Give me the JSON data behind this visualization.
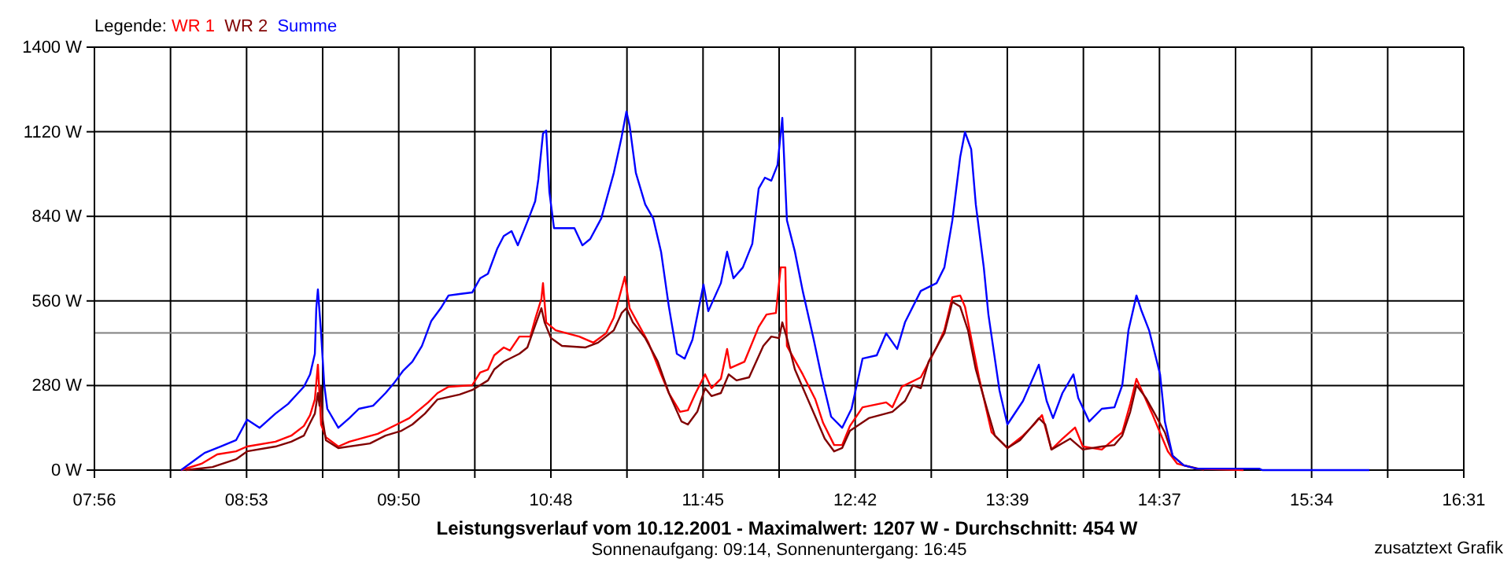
{
  "chart_data": {
    "type": "line",
    "title": "Leistungsverlauf vom 10.12.2001 - Maximalwert: 1207 W - Durchschnitt: 454 W",
    "subtitle": "Sonnenaufgang: 09:14, Sonnenuntergang: 16:45",
    "legend_title": "Legende:",
    "legend": "top left",
    "grid": true,
    "marker": "none",
    "line_style": "solid",
    "annotations": [
      "zusatztext Grafik"
    ],
    "xlim": [
      7.9333,
      16.5167
    ],
    "xticks": [
      {
        "value": 7.9333,
        "label": "07:56"
      },
      {
        "value": 8.4102,
        "label": null
      },
      {
        "value": 8.887,
        "label": "08:53"
      },
      {
        "value": 9.3639,
        "label": null
      },
      {
        "value": 9.8407,
        "label": "09:50"
      },
      {
        "value": 10.3176,
        "label": null
      },
      {
        "value": 10.7944,
        "label": "10:48"
      },
      {
        "value": 11.2713,
        "label": null
      },
      {
        "value": 11.7481,
        "label": "11:45"
      },
      {
        "value": 12.225,
        "label": null
      },
      {
        "value": 12.7018,
        "label": "12:42"
      },
      {
        "value": 13.1787,
        "label": null
      },
      {
        "value": 13.6555,
        "label": "13:39"
      },
      {
        "value": 14.1324,
        "label": null
      },
      {
        "value": 14.6092,
        "label": "14:37"
      },
      {
        "value": 15.0861,
        "label": null
      },
      {
        "value": 15.5629,
        "label": "15:34"
      },
      {
        "value": 16.0398,
        "label": null
      },
      {
        "value": 16.5167,
        "label": "16:31"
      }
    ],
    "ylim": [
      0,
      1400
    ],
    "yticks": [
      {
        "value": 0,
        "label": "0 W"
      },
      {
        "value": 280,
        "label": "280 W"
      },
      {
        "value": 560,
        "label": "560 W"
      },
      {
        "value": 840,
        "label": "840 W"
      },
      {
        "value": 1120,
        "label": "1120 W"
      },
      {
        "value": 1400,
        "label": "1400 W"
      }
    ],
    "ref_lines": [
      {
        "axis": "y",
        "value": 454,
        "color": "#808080"
      }
    ],
    "series": [
      {
        "name": "WR 1",
        "color": "#ff0000",
        "x": [
          8.476,
          8.604,
          8.703,
          8.821,
          8.89,
          9.068,
          9.167,
          9.246,
          9.285,
          9.315,
          9.334,
          9.354,
          9.384,
          9.462,
          9.531,
          9.709,
          9.828,
          9.907,
          10.025,
          10.084,
          10.153,
          10.301,
          10.351,
          10.4,
          10.439,
          10.499,
          10.538,
          10.597,
          10.666,
          10.696,
          10.735,
          10.745,
          10.765,
          10.824,
          10.972,
          11.061,
          11.14,
          11.189,
          11.258,
          11.288,
          11.337,
          11.406,
          11.485,
          11.534,
          11.604,
          11.653,
          11.702,
          11.761,
          11.801,
          11.86,
          11.899,
          11.919,
          12.008,
          12.097,
          12.146,
          12.205,
          12.235,
          12.264,
          12.274,
          12.373,
          12.452,
          12.501,
          12.57,
          12.62,
          12.669,
          12.748,
          12.896,
          12.935,
          12.994,
          13.113,
          13.212,
          13.261,
          13.311,
          13.36,
          13.39,
          13.429,
          13.478,
          13.557,
          13.656,
          13.754,
          13.823,
          13.873,
          13.932,
          14.001,
          14.08,
          14.129,
          14.248,
          14.327,
          14.376,
          14.426,
          14.465,
          14.514,
          14.563,
          14.662,
          14.721,
          14.84,
          15.136
        ],
        "values": [
          0,
          21,
          52,
          62,
          78,
          94,
          114,
          146,
          182,
          234,
          349,
          151,
          109,
          78,
          94,
          120,
          151,
          172,
          224,
          255,
          276,
          281,
          323,
          333,
          380,
          406,
          396,
          442,
          442,
          500,
          567,
          619,
          489,
          463,
          442,
          422,
          453,
          505,
          640,
          536,
          489,
          422,
          317,
          255,
          193,
          198,
          255,
          317,
          271,
          302,
          401,
          338,
          359,
          474,
          515,
          520,
          671,
          671,
          411,
          317,
          234,
          156,
          83,
          83,
          146,
          208,
          224,
          208,
          276,
          307,
          406,
          463,
          572,
          578,
          541,
          437,
          307,
          125,
          73,
          114,
          151,
          182,
          68,
          104,
          141,
          78,
          68,
          104,
          125,
          219,
          302,
          245,
          187,
          62,
          21,
          5,
          0
        ]
      },
      {
        "name": "WR 2",
        "color": "#800000",
        "x": [
          8.505,
          8.673,
          8.821,
          8.89,
          9.068,
          9.167,
          9.246,
          9.285,
          9.315,
          9.334,
          9.344,
          9.354,
          9.364,
          9.384,
          9.462,
          9.66,
          9.758,
          9.857,
          9.926,
          10.005,
          10.084,
          10.222,
          10.301,
          10.4,
          10.439,
          10.499,
          10.597,
          10.647,
          10.696,
          10.735,
          10.755,
          10.795,
          10.864,
          11.012,
          11.09,
          11.189,
          11.238,
          11.268,
          11.308,
          11.386,
          11.465,
          11.534,
          11.613,
          11.653,
          11.712,
          11.761,
          11.801,
          11.86,
          11.909,
          11.958,
          12.037,
          12.126,
          12.176,
          12.225,
          12.245,
          12.274,
          12.324,
          12.452,
          12.511,
          12.57,
          12.62,
          12.669,
          12.787,
          12.935,
          13.014,
          13.064,
          13.113,
          13.162,
          13.261,
          13.311,
          13.36,
          13.409,
          13.458,
          13.528,
          13.577,
          13.656,
          13.735,
          13.804,
          13.853,
          13.893,
          13.932,
          14.05,
          14.129,
          14.248,
          14.327,
          14.376,
          14.426,
          14.465,
          14.524,
          14.573,
          14.643,
          14.692,
          14.761,
          14.889
        ],
        "values": [
          0,
          10,
          36,
          62,
          78,
          94,
          114,
          156,
          187,
          255,
          213,
          276,
          167,
          99,
          73,
          88,
          114,
          130,
          151,
          187,
          234,
          250,
          265,
          297,
          333,
          359,
          385,
          406,
          479,
          536,
          489,
          437,
          411,
          406,
          422,
          463,
          520,
          536,
          489,
          437,
          359,
          255,
          161,
          151,
          193,
          271,
          245,
          255,
          317,
          297,
          307,
          411,
          442,
          437,
          489,
          437,
          333,
          177,
          104,
          62,
          73,
          130,
          172,
          193,
          229,
          281,
          271,
          359,
          453,
          557,
          541,
          463,
          333,
          203,
          114,
          73,
          99,
          141,
          172,
          151,
          68,
          104,
          68,
          78,
          83,
          114,
          193,
          281,
          239,
          193,
          125,
          47,
          16,
          0
        ]
      },
      {
        "name": "Summe",
        "color": "#0000ff",
        "x": [
          8.476,
          8.624,
          8.723,
          8.821,
          8.89,
          8.969,
          9.068,
          9.147,
          9.246,
          9.285,
          9.315,
          9.324,
          9.334,
          9.354,
          9.374,
          9.393,
          9.462,
          9.531,
          9.591,
          9.68,
          9.758,
          9.808,
          9.867,
          9.926,
          9.986,
          10.045,
          10.104,
          10.153,
          10.222,
          10.301,
          10.351,
          10.4,
          10.459,
          10.499,
          10.548,
          10.587,
          10.627,
          10.666,
          10.696,
          10.716,
          10.745,
          10.765,
          10.785,
          10.814,
          10.942,
          10.992,
          11.041,
          11.11,
          11.189,
          11.238,
          11.268,
          11.288,
          11.327,
          11.386,
          11.436,
          11.485,
          11.534,
          11.584,
          11.633,
          11.682,
          11.751,
          11.781,
          11.86,
          11.899,
          11.939,
          11.998,
          12.057,
          12.097,
          12.136,
          12.176,
          12.215,
          12.245,
          12.274,
          12.324,
          12.373,
          12.442,
          12.492,
          12.551,
          12.62,
          12.679,
          12.748,
          12.837,
          12.896,
          12.965,
          13.014,
          13.113,
          13.212,
          13.261,
          13.311,
          13.36,
          13.39,
          13.429,
          13.458,
          13.508,
          13.537,
          13.606,
          13.656,
          13.754,
          13.853,
          13.902,
          13.942,
          14.001,
          14.07,
          14.1,
          14.169,
          14.248,
          14.327,
          14.376,
          14.415,
          14.465,
          14.494,
          14.544,
          14.613,
          14.643,
          14.692,
          14.761,
          14.84,
          15.234,
          15.254,
          15.925
        ],
        "values": [
          0,
          57,
          78,
          99,
          167,
          140,
          187,
          219,
          276,
          317,
          385,
          536,
          598,
          453,
          281,
          203,
          140,
          172,
          203,
          213,
          255,
          286,
          328,
          359,
          411,
          494,
          536,
          578,
          583,
          588,
          635,
          650,
          734,
          775,
          791,
          744,
          796,
          848,
          890,
          963,
          1114,
          1124,
          921,
          801,
          801,
          744,
          765,
          833,
          984,
          1103,
          1187,
          1140,
          984,
          879,
          833,
          723,
          541,
          385,
          369,
          432,
          614,
          526,
          619,
          723,
          635,
          671,
          749,
          932,
          968,
          958,
          1010,
          1166,
          827,
          723,
          593,
          432,
          307,
          177,
          140,
          203,
          369,
          380,
          453,
          401,
          489,
          593,
          619,
          671,
          827,
          1036,
          1119,
          1062,
          879,
          671,
          515,
          265,
          151,
          229,
          349,
          229,
          172,
          255,
          317,
          239,
          161,
          203,
          208,
          281,
          463,
          578,
          531,
          463,
          317,
          161,
          47,
          16,
          5,
          5,
          0,
          0
        ]
      }
    ]
  }
}
